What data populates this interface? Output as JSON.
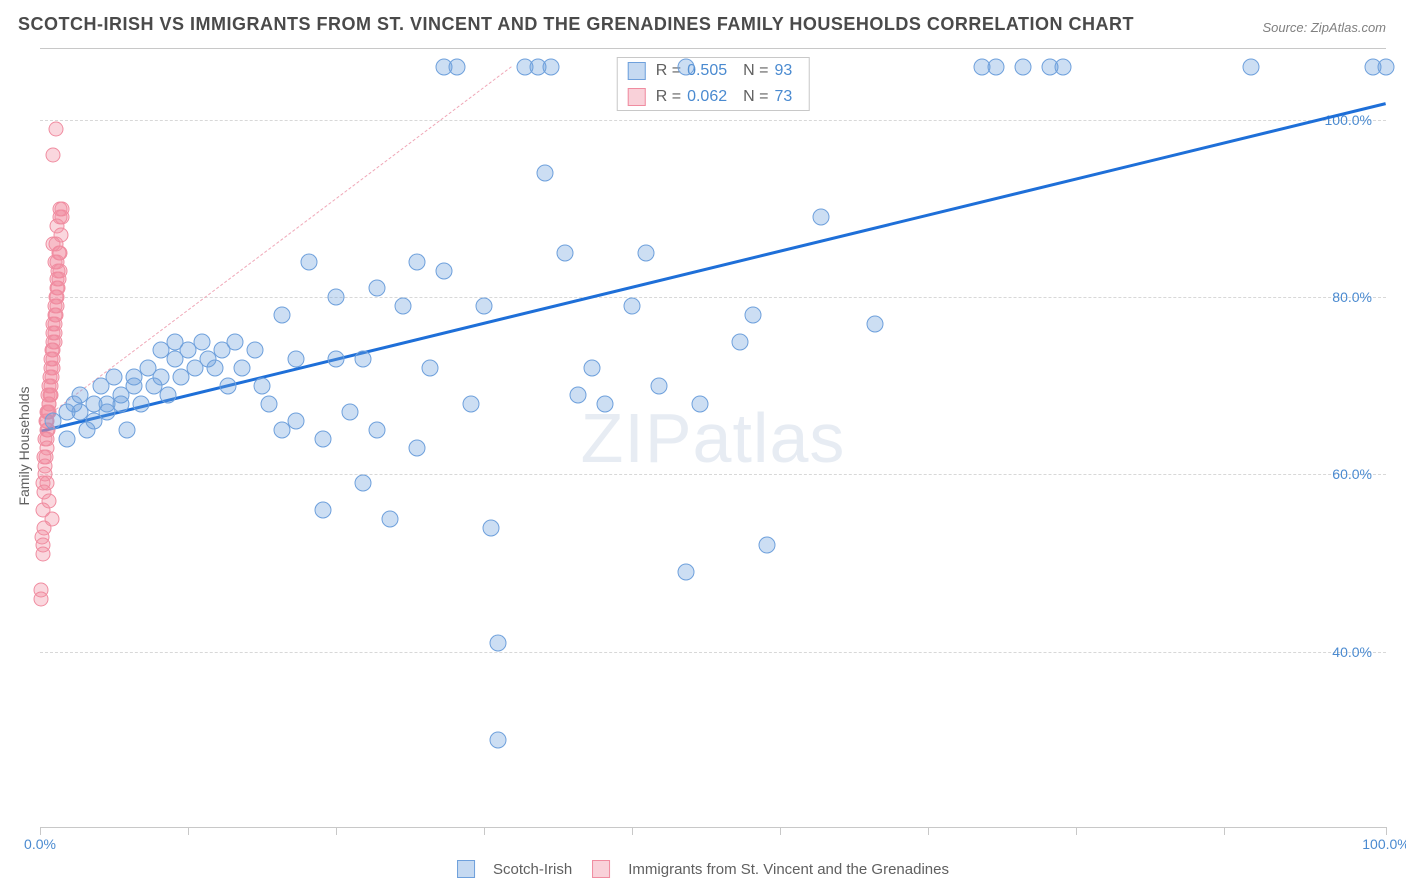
{
  "title": "SCOTCH-IRISH VS IMMIGRANTS FROM ST. VINCENT AND THE GRENADINES FAMILY HOUSEHOLDS CORRELATION CHART",
  "source": "Source: ZipAtlas.com",
  "watermark": "ZIPatlas",
  "y_axis_label": "Family Households",
  "chart": {
    "type": "scatter",
    "xlim": [
      0,
      100
    ],
    "ylim": [
      20,
      108
    ],
    "y_ticks": [
      40,
      60,
      80,
      100
    ],
    "y_tick_labels": [
      "40.0%",
      "60.0%",
      "80.0%",
      "100.0%"
    ],
    "x_ticks": [
      0,
      11,
      22,
      33,
      44,
      55,
      66,
      77,
      88,
      100
    ],
    "x_tick_labels_shown": {
      "0": "0.0%",
      "100": "100.0%"
    },
    "grid_color": "#d8d8d8",
    "background_color": "#ffffff",
    "axis_color": "#c8c8c8",
    "label_color": "#4a8ad0"
  },
  "series_blue": {
    "name": "Scotch-Irish",
    "color": "#6ea0dc",
    "fill": "rgba(110,160,220,0.35)",
    "trend_color": "#1e6fd8",
    "R": "0.505",
    "N": "93",
    "trend": {
      "x1": 0,
      "y1": 65,
      "x2": 100,
      "y2": 102
    },
    "points": [
      [
        1,
        66
      ],
      [
        2,
        67
      ],
      [
        2,
        64
      ],
      [
        2.5,
        68
      ],
      [
        3,
        67
      ],
      [
        3,
        69
      ],
      [
        3.5,
        65
      ],
      [
        4,
        68
      ],
      [
        4,
        66
      ],
      [
        4.5,
        70
      ],
      [
        5,
        68
      ],
      [
        5,
        67
      ],
      [
        5.5,
        71
      ],
      [
        6,
        69
      ],
      [
        6,
        68
      ],
      [
        6.5,
        65
      ],
      [
        7,
        70
      ],
      [
        7,
        71
      ],
      [
        7.5,
        68
      ],
      [
        8,
        72
      ],
      [
        8.5,
        70
      ],
      [
        9,
        74
      ],
      [
        9,
        71
      ],
      [
        9.5,
        69
      ],
      [
        10,
        73
      ],
      [
        10,
        75
      ],
      [
        10.5,
        71
      ],
      [
        11,
        74
      ],
      [
        11.5,
        72
      ],
      [
        12,
        75
      ],
      [
        12.5,
        73
      ],
      [
        13,
        72
      ],
      [
        13.5,
        74
      ],
      [
        14,
        70
      ],
      [
        14.5,
        75
      ],
      [
        15,
        72
      ],
      [
        16,
        74
      ],
      [
        16.5,
        70
      ],
      [
        17,
        68
      ],
      [
        18,
        65
      ],
      [
        18,
        78
      ],
      [
        19,
        73
      ],
      [
        19,
        66
      ],
      [
        20,
        84
      ],
      [
        21,
        64
      ],
      [
        21,
        56
      ],
      [
        22,
        73
      ],
      [
        22,
        80
      ],
      [
        23,
        67
      ],
      [
        24,
        73
      ],
      [
        24,
        59
      ],
      [
        25,
        81
      ],
      [
        25,
        65
      ],
      [
        26,
        55
      ],
      [
        27,
        79
      ],
      [
        28,
        63
      ],
      [
        28,
        84
      ],
      [
        29,
        72
      ],
      [
        30,
        106
      ],
      [
        30,
        83
      ],
      [
        31,
        106
      ],
      [
        32,
        68
      ],
      [
        33,
        79
      ],
      [
        33.5,
        54
      ],
      [
        34,
        30
      ],
      [
        34,
        41
      ],
      [
        36,
        106
      ],
      [
        37,
        106
      ],
      [
        37.5,
        94
      ],
      [
        38,
        106
      ],
      [
        39,
        85
      ],
      [
        40,
        69
      ],
      [
        41,
        72
      ],
      [
        42,
        68
      ],
      [
        44,
        79
      ],
      [
        45,
        85
      ],
      [
        46,
        70
      ],
      [
        48,
        106
      ],
      [
        48,
        49
      ],
      [
        49,
        68
      ],
      [
        52,
        75
      ],
      [
        53,
        78
      ],
      [
        54,
        52
      ],
      [
        58,
        89
      ],
      [
        62,
        77
      ],
      [
        70,
        106
      ],
      [
        71,
        106
      ],
      [
        73,
        106
      ],
      [
        75,
        106
      ],
      [
        76,
        106
      ],
      [
        90,
        106
      ],
      [
        99,
        106
      ],
      [
        100,
        106
      ]
    ]
  },
  "series_pink": {
    "name": "Immigrants from St. Vincent and the Grenadines",
    "color": "#f08ca0",
    "fill": "rgba(240,140,160,0.35)",
    "trend_color": "#f0a8b8",
    "R": "0.062",
    "N": "73",
    "trend": {
      "x1": 0,
      "y1": 66,
      "x2": 35,
      "y2": 106
    },
    "points": [
      [
        0.1,
        47
      ],
      [
        0.1,
        46
      ],
      [
        0.2,
        51
      ],
      [
        0.2,
        52
      ],
      [
        0.15,
        53
      ],
      [
        0.3,
        54
      ],
      [
        0.25,
        56
      ],
      [
        0.3,
        58
      ],
      [
        0.2,
        59
      ],
      [
        0.35,
        60
      ],
      [
        0.4,
        61
      ],
      [
        0.3,
        62
      ],
      [
        0.45,
        62
      ],
      [
        0.5,
        63
      ],
      [
        0.4,
        64
      ],
      [
        0.55,
        64
      ],
      [
        0.5,
        65
      ],
      [
        0.6,
        65
      ],
      [
        0.45,
        66
      ],
      [
        0.55,
        66
      ],
      [
        0.6,
        67
      ],
      [
        0.5,
        67
      ],
      [
        0.7,
        67
      ],
      [
        0.65,
        68
      ],
      [
        0.7,
        68
      ],
      [
        0.75,
        69
      ],
      [
        0.6,
        69
      ],
      [
        0.8,
        69
      ],
      [
        0.7,
        70
      ],
      [
        0.85,
        70
      ],
      [
        0.75,
        71
      ],
      [
        0.9,
        71
      ],
      [
        0.8,
        72
      ],
      [
        0.95,
        72
      ],
      [
        0.85,
        73
      ],
      [
        1.0,
        73
      ],
      [
        0.9,
        74
      ],
      [
        1.0,
        74
      ],
      [
        0.95,
        75
      ],
      [
        1.1,
        75
      ],
      [
        1.0,
        76
      ],
      [
        1.1,
        76
      ],
      [
        1.15,
        77
      ],
      [
        1.0,
        77
      ],
      [
        1.2,
        78
      ],
      [
        1.1,
        78
      ],
      [
        1.25,
        79
      ],
      [
        1.15,
        79
      ],
      [
        1.3,
        80
      ],
      [
        1.2,
        80
      ],
      [
        1.35,
        81
      ],
      [
        1.25,
        81
      ],
      [
        1.4,
        82
      ],
      [
        1.3,
        82
      ],
      [
        1.45,
        83
      ],
      [
        1.35,
        83
      ],
      [
        1.1,
        84
      ],
      [
        1.5,
        85
      ],
      [
        1.4,
        85
      ],
      [
        1.2,
        86
      ],
      [
        1.55,
        87
      ],
      [
        1.3,
        88
      ],
      [
        1.6,
        89
      ],
      [
        1.45,
        89
      ],
      [
        1.0,
        96
      ],
      [
        1.65,
        90
      ],
      [
        1.5,
        90
      ],
      [
        1.2,
        99
      ],
      [
        0.9,
        55
      ],
      [
        0.7,
        57
      ],
      [
        0.5,
        59
      ],
      [
        1.3,
        84
      ],
      [
        1.0,
        86
      ]
    ]
  },
  "stats_labels": {
    "R_prefix": "R = ",
    "N_prefix": "N = "
  },
  "legend": {
    "item1": "Scotch-Irish",
    "item2": "Immigrants from St. Vincent and the Grenadines"
  }
}
